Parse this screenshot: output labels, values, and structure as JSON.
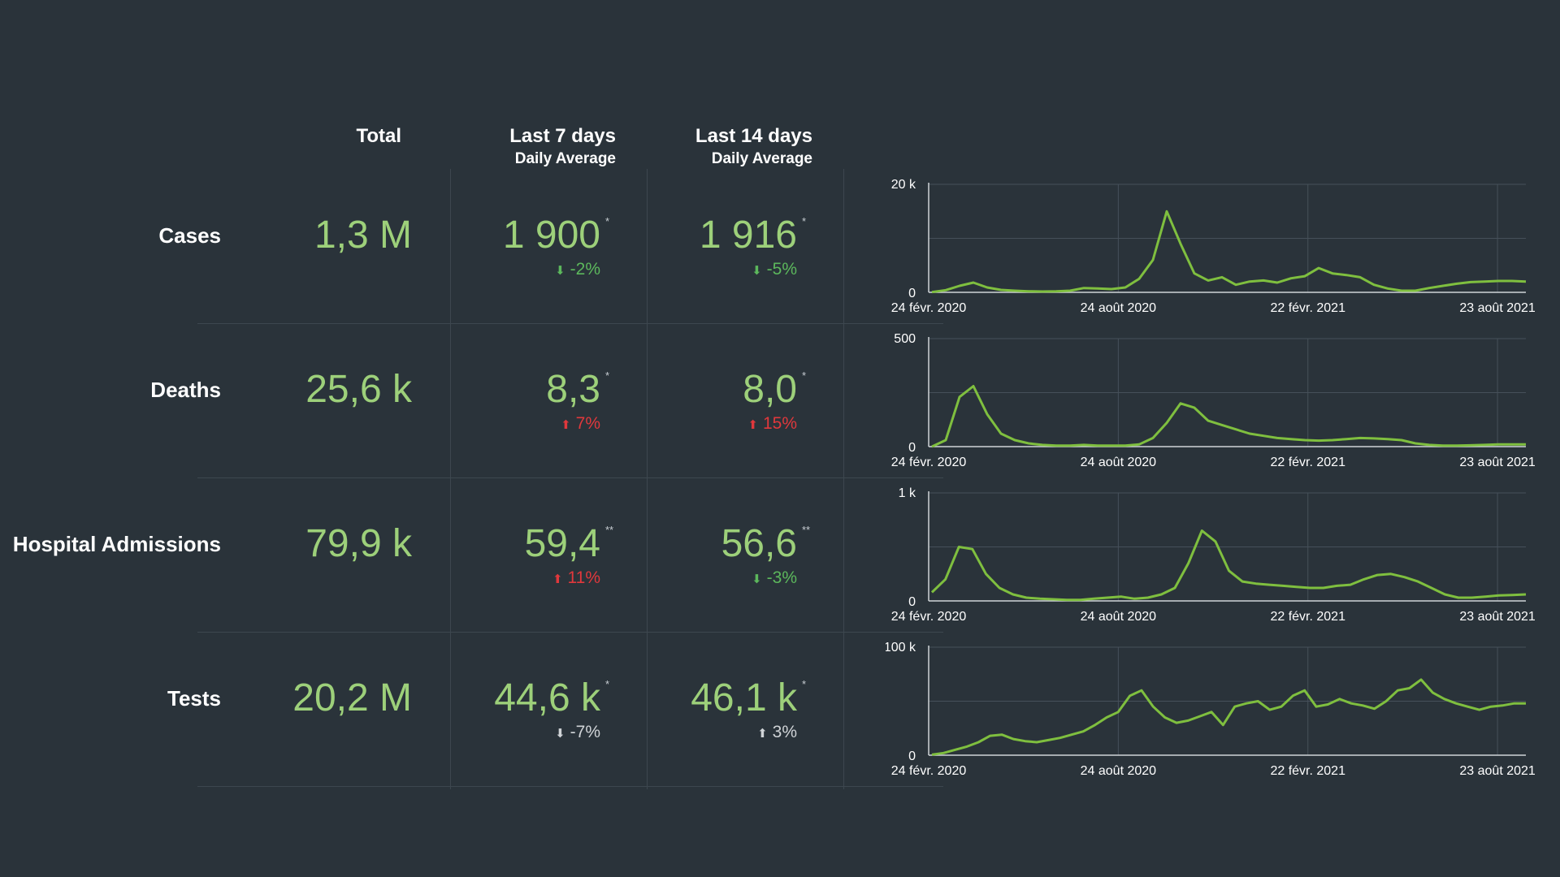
{
  "headers": {
    "total": "Total",
    "last7": "Last 7 days",
    "last7_sub": "Daily Average",
    "last14": "Last 14 days",
    "last14_sub": "Daily Average"
  },
  "rows": [
    {
      "label": "Cases",
      "total": "1,3 M",
      "last7": "1 900",
      "last7_mark": "*",
      "last7_change": "-2%",
      "last7_dir": "down",
      "last7_color": "#5cb85c",
      "last14": "1 916",
      "last14_mark": "*",
      "last14_change": "-5%",
      "last14_dir": "down",
      "last14_color": "#5cb85c"
    },
    {
      "label": "Deaths",
      "total": "25,6 k",
      "last7": "8,3",
      "last7_mark": "*",
      "last7_change": "7%",
      "last7_dir": "up",
      "last7_color": "#e0383c",
      "last14": "8,0",
      "last14_mark": "*",
      "last14_change": "15%",
      "last14_dir": "up",
      "last14_color": "#e0383c"
    },
    {
      "label": "Hospital Admissions",
      "total": "79,9 k",
      "last7": "59,4",
      "last7_mark": "**",
      "last7_change": "11%",
      "last7_dir": "up",
      "last7_color": "#e0383c",
      "last14": "56,6",
      "last14_mark": "**",
      "last14_change": "-3%",
      "last14_dir": "down",
      "last14_color": "#5cb85c"
    },
    {
      "label": "Tests",
      "total": "20,2 M",
      "last7": "44,6 k",
      "last7_mark": "*",
      "last7_change": "-7%",
      "last7_dir": "down",
      "last7_color": "#d0d4d7",
      "last14": "46,1 k",
      "last14_mark": "*",
      "last14_change": "3%",
      "last14_dir": "up",
      "last14_color": "#d0d4d7"
    }
  ],
  "colors": {
    "background": "#2a333a",
    "line": "#7fbf3f",
    "value": "#9dd07a",
    "grid": "#46505a"
  },
  "chart_data": [
    {
      "type": "line",
      "series_of": "Cases",
      "ylim": [
        0,
        20000
      ],
      "yticks": [
        "20 k",
        "0"
      ],
      "xticks": [
        "24 févr. 2020",
        "24 août 2020",
        "22 févr. 2021",
        "23 août 2021"
      ],
      "grid": true,
      "y": [
        50,
        400,
        1200,
        1800,
        900,
        450,
        300,
        200,
        150,
        200,
        300,
        800,
        700,
        600,
        900,
        2500,
        6000,
        15000,
        9000,
        3500,
        2200,
        2800,
        1400,
        2000,
        2200,
        1800,
        2600,
        3000,
        4500,
        3500,
        3200,
        2800,
        1400,
        700,
        300,
        300,
        800,
        1200,
        1600,
        1900,
        2000,
        2100,
        2100,
        2000
      ]
    },
    {
      "type": "line",
      "series_of": "Deaths",
      "ylim": [
        0,
        500
      ],
      "yticks": [
        "500",
        "0"
      ],
      "xticks": [
        "24 févr. 2020",
        "24 août 2020",
        "22 févr. 2021",
        "23 août 2021"
      ],
      "grid": true,
      "y": [
        0,
        30,
        230,
        280,
        150,
        60,
        30,
        15,
        8,
        5,
        5,
        8,
        5,
        5,
        5,
        10,
        40,
        110,
        200,
        180,
        120,
        100,
        80,
        60,
        50,
        40,
        35,
        30,
        28,
        30,
        35,
        40,
        38,
        35,
        30,
        15,
        8,
        5,
        5,
        6,
        8,
        10,
        10,
        10
      ]
    },
    {
      "type": "line",
      "series_of": "Hospital Admissions",
      "ylim": [
        0,
        1000
      ],
      "yticks": [
        "1 k",
        "0"
      ],
      "xticks": [
        "24 févr. 2020",
        "24 août 2020",
        "22 févr. 2021",
        "23 août 2021"
      ],
      "grid": true,
      "y": [
        80,
        200,
        500,
        480,
        250,
        120,
        60,
        30,
        20,
        15,
        10,
        10,
        20,
        30,
        40,
        20,
        30,
        60,
        120,
        350,
        650,
        550,
        280,
        180,
        160,
        150,
        140,
        130,
        120,
        120,
        140,
        150,
        200,
        240,
        250,
        220,
        180,
        120,
        60,
        30,
        30,
        40,
        50,
        55,
        60
      ]
    },
    {
      "type": "line",
      "series_of": "Tests",
      "ylim": [
        0,
        100000
      ],
      "yticks": [
        "100 k",
        "0"
      ],
      "xticks": [
        "24 févr. 2020",
        "24 août 2020",
        "22 févr. 2021",
        "23 août 2021"
      ],
      "grid": true,
      "y": [
        500,
        2000,
        5000,
        8000,
        12000,
        18000,
        19000,
        15000,
        13000,
        12000,
        14000,
        16000,
        19000,
        22000,
        28000,
        35000,
        40000,
        55000,
        60000,
        45000,
        35000,
        30000,
        32000,
        36000,
        40000,
        28000,
        45000,
        48000,
        50000,
        42000,
        45000,
        55000,
        60000,
        45000,
        47000,
        52000,
        48000,
        46000,
        43000,
        50000,
        60000,
        62000,
        70000,
        58000,
        52000,
        48000,
        45000,
        42000,
        45000,
        46000,
        48000,
        48000
      ]
    }
  ]
}
